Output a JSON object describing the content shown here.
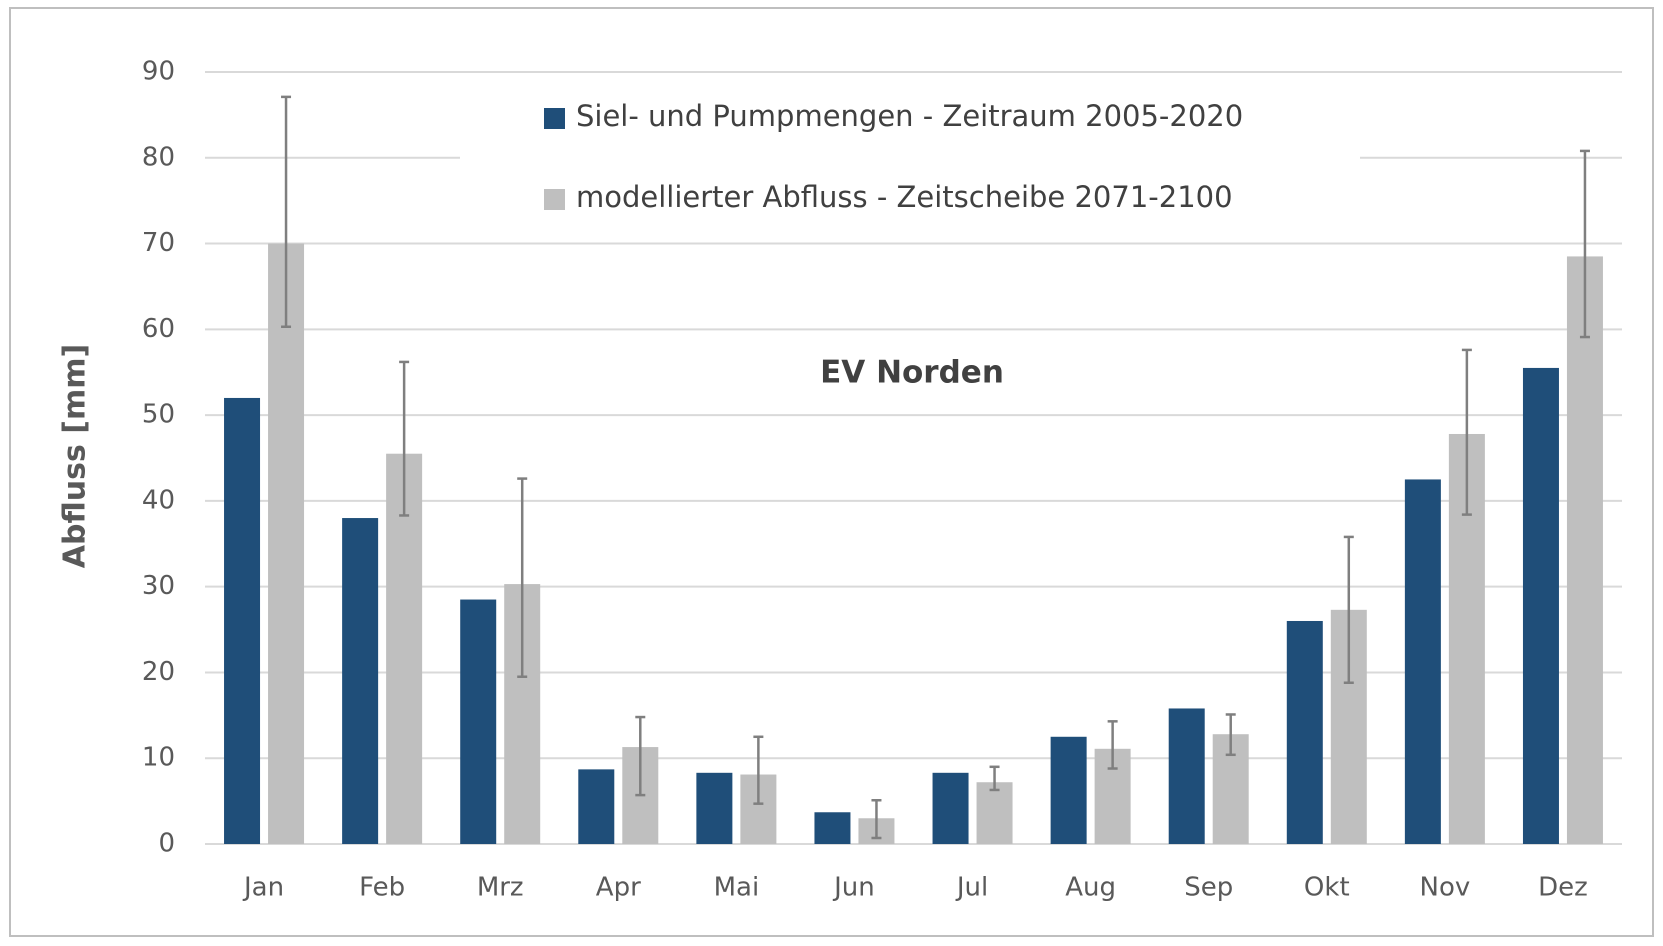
{
  "chart_data": {
    "type": "bar",
    "title": "EV Norden",
    "y_label": "Abfluss [mm]",
    "categories": [
      "Jan",
      "Feb",
      "Mrz",
      "Apr",
      "Mai",
      "Jun",
      "Jul",
      "Aug",
      "Sep",
      "Okt",
      "Nov",
      "Dez"
    ],
    "series": [
      {
        "name": "Siel- und Pumpmengen - Zeitraum 2005-2020",
        "color": "#1f4e79",
        "values": [
          52,
          38,
          28.5,
          8.7,
          8.3,
          3.7,
          8.3,
          12.5,
          15.8,
          26,
          42.5,
          55.5
        ]
      },
      {
        "name": "modellierter Abfluss - Zeitscheibe 2071-2100",
        "color": "#bfbfbf",
        "values": [
          70,
          45.5,
          30.3,
          11.3,
          8.1,
          3,
          7.2,
          11.1,
          12.8,
          27.3,
          47.8,
          68.5
        ],
        "error_plus": [
          17.1,
          10.7,
          12.3,
          3.5,
          4.4,
          2.1,
          1.8,
          3.2,
          2.3,
          8.5,
          9.8,
          12.3
        ],
        "error_minus": [
          9.7,
          7.2,
          10.8,
          5.6,
          3.4,
          2.3,
          0.9,
          2.3,
          2.4,
          8.5,
          9.4,
          9.4
        ],
        "error_color": "#7f7f7f"
      }
    ],
    "ylim": [
      0,
      90
    ],
    "yticks": [
      0,
      10,
      20,
      30,
      40,
      50,
      60,
      70,
      80,
      90
    ],
    "grid": true
  }
}
